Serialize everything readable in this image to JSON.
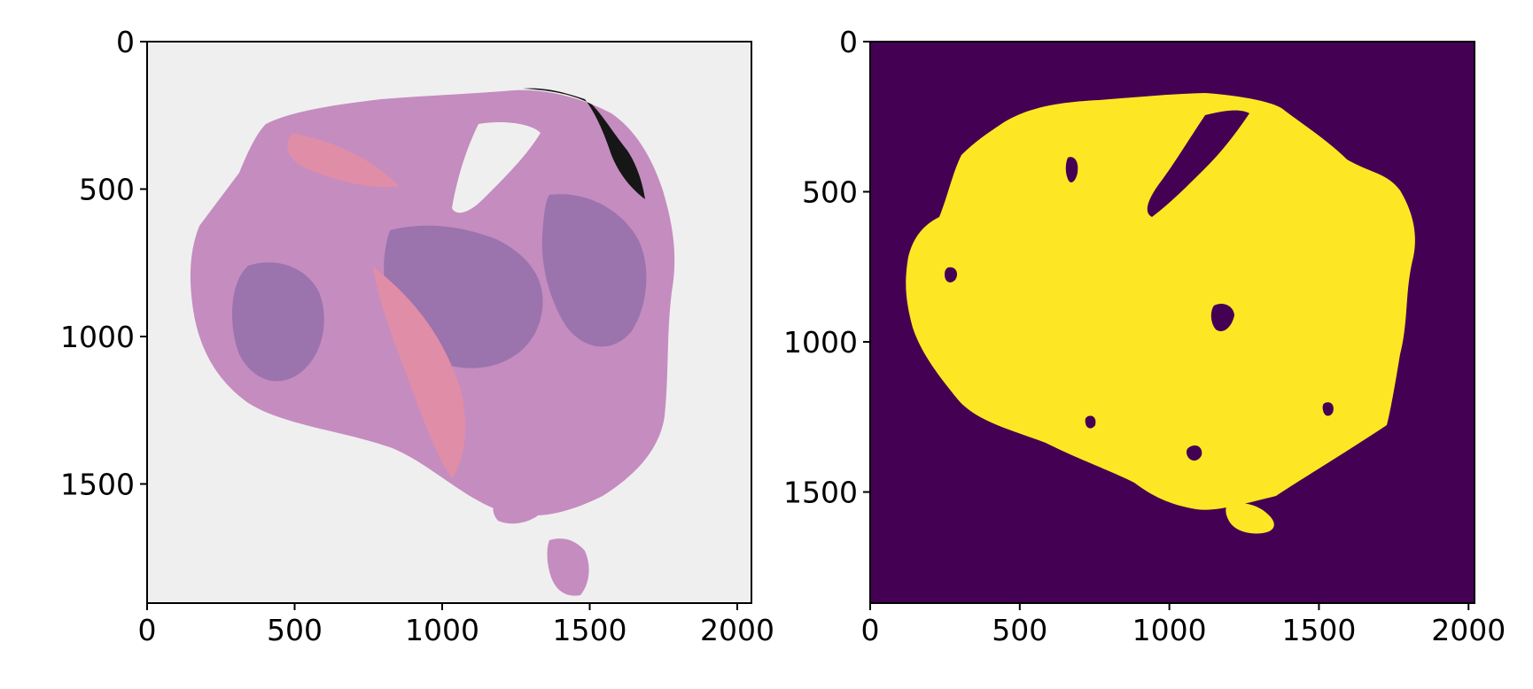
{
  "chart_data": [
    {
      "type": "image",
      "panel": "left",
      "content": "whole-slide H&E tissue thumbnail",
      "xlim": [
        0,
        2048
      ],
      "ylim": [
        1904,
        0
      ],
      "xticks": [
        0,
        500,
        1000,
        1500,
        2000
      ],
      "yticks": [
        0,
        500,
        1000,
        1500
      ],
      "xtick_labels": [
        "0",
        "500",
        "1000",
        "1500",
        "2000"
      ],
      "ytick_labels": [
        "0",
        "500",
        "1000",
        "1500"
      ],
      "colors": {
        "background": "#efefef",
        "tissue": "#c58cc0",
        "tissue_dark": "#9b73ad",
        "stroma": "#e08da8",
        "marker": "#161616"
      }
    },
    {
      "type": "heatmap",
      "panel": "right",
      "content": "binary tissue mask",
      "colormap": "viridis",
      "xlim": [
        0,
        2020
      ],
      "ylim": [
        1870,
        0
      ],
      "xticks": [
        0,
        500,
        1000,
        1500,
        2000
      ],
      "yticks": [
        0,
        500,
        1000,
        1500
      ],
      "xtick_labels": [
        "0",
        "500",
        "1000",
        "1500",
        "2000"
      ],
      "ytick_labels": [
        "0",
        "500",
        "1000",
        "1500"
      ],
      "colors": {
        "background": "#440154",
        "mask": "#fde725"
      }
    }
  ]
}
